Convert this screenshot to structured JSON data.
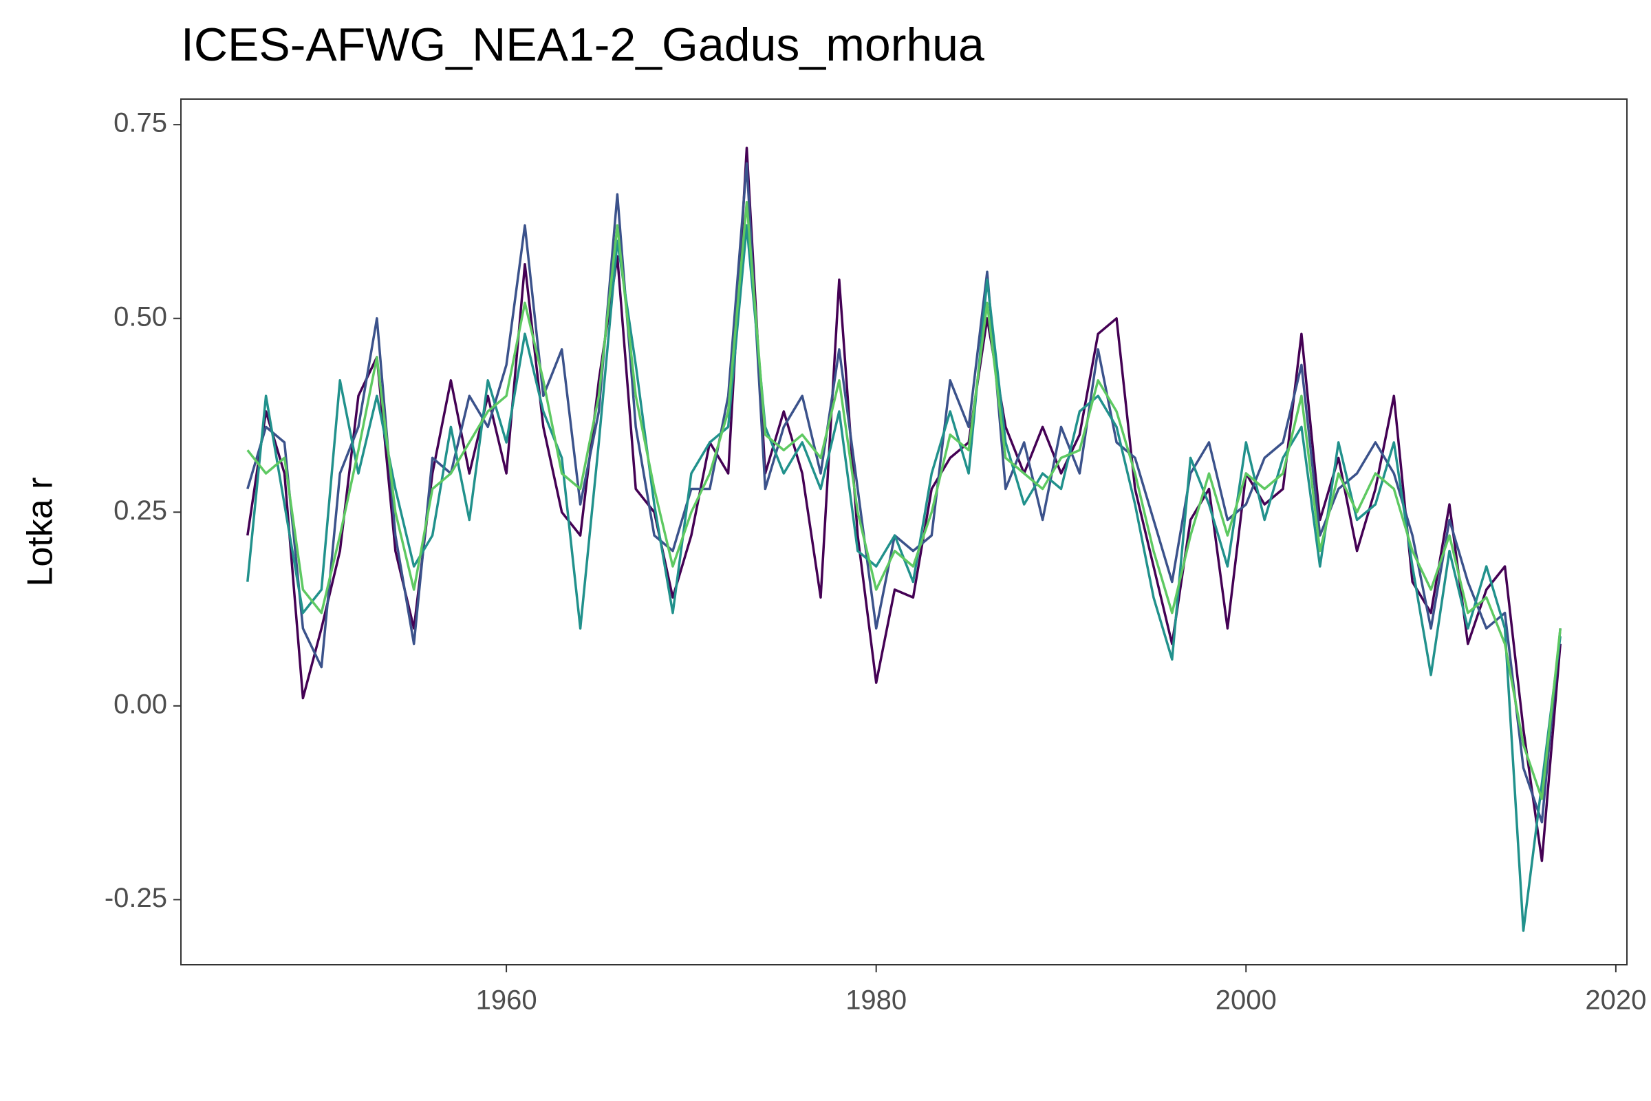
{
  "chart_data": {
    "type": "line",
    "title": "ICES-AFWG_NEA1-2_Gadus_morhua",
    "y_label": "Lotka r",
    "x": [
      1946,
      1947,
      1948,
      1949,
      1950,
      1951,
      1952,
      1953,
      1954,
      1955,
      1956,
      1957,
      1958,
      1959,
      1960,
      1961,
      1962,
      1963,
      1964,
      1965,
      1966,
      1967,
      1968,
      1969,
      1970,
      1971,
      1972,
      1973,
      1974,
      1975,
      1976,
      1977,
      1978,
      1979,
      1980,
      1981,
      1982,
      1983,
      1984,
      1985,
      1986,
      1987,
      1988,
      1989,
      1990,
      1991,
      1992,
      1993,
      1994,
      1995,
      1996,
      1997,
      1998,
      1999,
      2000,
      2001,
      2002,
      2003,
      2004,
      2005,
      2006,
      2007,
      2008,
      2009,
      2010,
      2011,
      2012,
      2013,
      2014,
      2015,
      2016,
      2017
    ],
    "series": [
      {
        "color": "#440154",
        "values": [
          0.22,
          0.38,
          0.3,
          0.01,
          0.1,
          0.2,
          0.4,
          0.45,
          0.2,
          0.1,
          0.3,
          0.42,
          0.3,
          0.4,
          0.3,
          0.57,
          0.36,
          0.25,
          0.22,
          0.42,
          0.58,
          0.28,
          0.25,
          0.14,
          0.22,
          0.34,
          0.3,
          0.72,
          0.3,
          0.38,
          0.3,
          0.14,
          0.55,
          0.22,
          0.03,
          0.15,
          0.14,
          0.28,
          0.32,
          0.34,
          0.5,
          0.36,
          0.3,
          0.36,
          0.3,
          0.35,
          0.48,
          0.5,
          0.28,
          0.18,
          0.08,
          0.24,
          0.28,
          0.1,
          0.3,
          0.26,
          0.28,
          0.48,
          0.24,
          0.32,
          0.2,
          0.28,
          0.4,
          0.16,
          0.12,
          0.26,
          0.08,
          0.15,
          0.18,
          -0.03,
          -0.2,
          0.08
        ]
      },
      {
        "color": "#3b528b",
        "values": [
          0.28,
          0.36,
          0.34,
          0.1,
          0.05,
          0.3,
          0.36,
          0.5,
          0.22,
          0.08,
          0.32,
          0.3,
          0.4,
          0.36,
          0.44,
          0.62,
          0.4,
          0.46,
          0.26,
          0.38,
          0.66,
          0.36,
          0.22,
          0.2,
          0.28,
          0.28,
          0.4,
          0.7,
          0.28,
          0.36,
          0.4,
          0.3,
          0.46,
          0.28,
          0.1,
          0.22,
          0.2,
          0.22,
          0.42,
          0.36,
          0.56,
          0.28,
          0.34,
          0.24,
          0.36,
          0.3,
          0.46,
          0.34,
          0.32,
          0.24,
          0.16,
          0.3,
          0.34,
          0.24,
          0.26,
          0.32,
          0.34,
          0.44,
          0.22,
          0.28,
          0.3,
          0.34,
          0.3,
          0.22,
          0.1,
          0.24,
          0.16,
          0.1,
          0.12,
          -0.08,
          -0.15,
          0.1
        ]
      },
      {
        "color": "#21918c",
        "values": [
          0.16,
          0.4,
          0.26,
          0.12,
          0.15,
          0.42,
          0.3,
          0.4,
          0.28,
          0.18,
          0.22,
          0.36,
          0.24,
          0.42,
          0.34,
          0.48,
          0.38,
          0.32,
          0.1,
          0.34,
          0.6,
          0.44,
          0.26,
          0.12,
          0.3,
          0.34,
          0.36,
          0.62,
          0.36,
          0.3,
          0.34,
          0.28,
          0.38,
          0.2,
          0.18,
          0.22,
          0.16,
          0.3,
          0.38,
          0.3,
          0.55,
          0.34,
          0.26,
          0.3,
          0.28,
          0.38,
          0.4,
          0.36,
          0.26,
          0.14,
          0.06,
          0.32,
          0.26,
          0.18,
          0.34,
          0.24,
          0.32,
          0.36,
          0.18,
          0.34,
          0.24,
          0.26,
          0.34,
          0.18,
          0.04,
          0.2,
          0.1,
          0.18,
          0.1,
          -0.29,
          -0.1,
          0.09
        ]
      },
      {
        "color": "#5ec962",
        "values": [
          0.33,
          0.3,
          0.32,
          0.15,
          0.12,
          0.22,
          0.33,
          0.45,
          0.25,
          0.15,
          0.28,
          0.3,
          0.34,
          0.38,
          0.4,
          0.52,
          0.42,
          0.3,
          0.28,
          0.4,
          0.62,
          0.4,
          0.28,
          0.18,
          0.25,
          0.3,
          0.38,
          0.65,
          0.35,
          0.33,
          0.35,
          0.32,
          0.42,
          0.25,
          0.15,
          0.2,
          0.18,
          0.25,
          0.35,
          0.33,
          0.52,
          0.32,
          0.3,
          0.28,
          0.32,
          0.33,
          0.42,
          0.38,
          0.3,
          0.2,
          0.12,
          0.22,
          0.3,
          0.22,
          0.3,
          0.28,
          0.3,
          0.4,
          0.2,
          0.3,
          0.25,
          0.3,
          0.28,
          0.2,
          0.15,
          0.22,
          0.12,
          0.14,
          0.08,
          -0.05,
          -0.12,
          0.1
        ]
      }
    ],
    "xlim": [
      1942.4,
      2020.6
    ],
    "xticks": [
      1960,
      1980,
      2000,
      2020
    ],
    "ylim": [
      -0.334,
      0.783
    ],
    "yticks": [
      -0.25,
      {
        "value": 0,
        "label": "0.00"
      },
      0.25,
      {
        "value": 0.5,
        "label": "0.50"
      },
      0.75
    ],
    "grid": false
  }
}
